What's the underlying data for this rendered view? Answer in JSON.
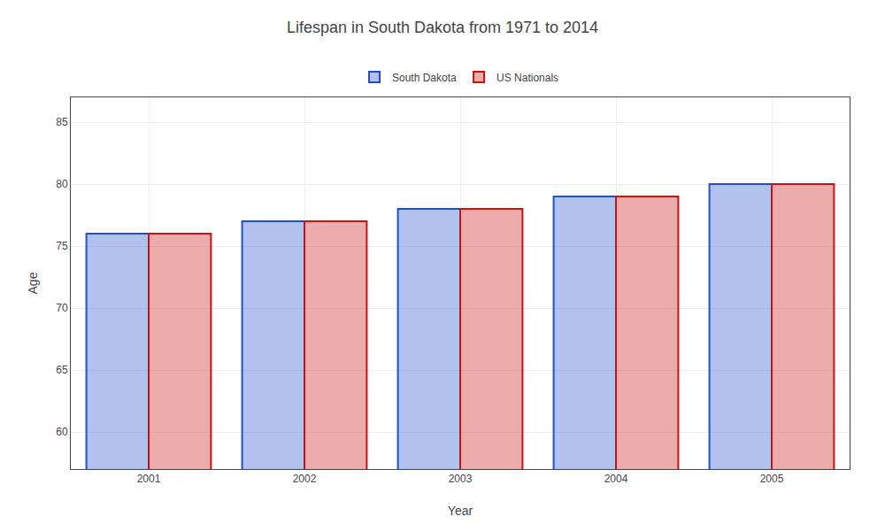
{
  "chart_data": {
    "type": "bar",
    "title": "Lifespan in South Dakota from 1971 to 2014",
    "xlabel": "Year",
    "ylabel": "Age",
    "categories": [
      "2001",
      "2002",
      "2003",
      "2004",
      "2005"
    ],
    "series": [
      {
        "name": "South Dakota",
        "color": "#1f4fcf",
        "values": [
          76,
          77,
          78,
          79,
          80
        ]
      },
      {
        "name": "US Nationals",
        "color": "#cc1111",
        "values": [
          76,
          77,
          78,
          79,
          80
        ]
      }
    ],
    "ylim": [
      57,
      87
    ],
    "yticks": [
      60,
      65,
      70,
      75,
      80,
      85
    ],
    "grid": true,
    "legend": "upper center"
  }
}
